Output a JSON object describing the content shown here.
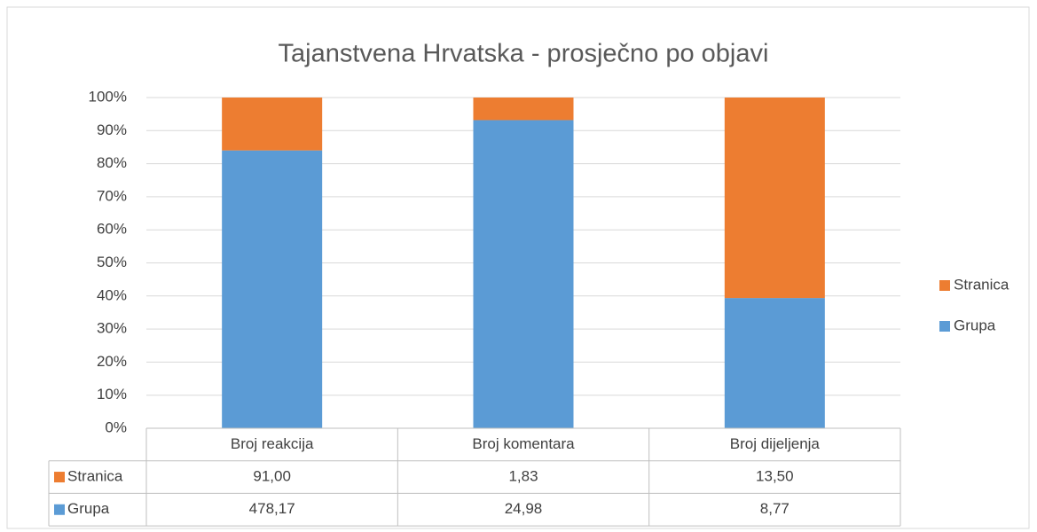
{
  "chart_data": {
    "type": "bar",
    "stacked": "percent",
    "title": "Tajanstvena Hrvatska - prosječno po objavi",
    "categories": [
      "Broj reakcija",
      "Broj komentara",
      "Broj dijeljenja"
    ],
    "series": [
      {
        "name": "Grupa",
        "color": "#5b9bd5",
        "values": [
          478.17,
          24.98,
          8.77
        ],
        "value_labels": [
          "478,17",
          "24,98",
          "8,77"
        ]
      },
      {
        "name": "Stranica",
        "color": "#ed7d31",
        "values": [
          91.0,
          1.83,
          13.5
        ],
        "value_labels": [
          "91,00",
          "1,83",
          "13,50"
        ]
      }
    ],
    "ylim": [
      0,
      100
    ],
    "yticks": [
      {
        "value": 0,
        "label": "0%"
      },
      {
        "value": 10,
        "label": "10%"
      },
      {
        "value": 20,
        "label": "20%"
      },
      {
        "value": 30,
        "label": "30%"
      },
      {
        "value": 40,
        "label": "40%"
      },
      {
        "value": 50,
        "label": "50%"
      },
      {
        "value": 60,
        "label": "60%"
      },
      {
        "value": 70,
        "label": "70%"
      },
      {
        "value": 80,
        "label": "80%"
      },
      {
        "value": 90,
        "label": "90%"
      },
      {
        "value": 100,
        "label": "100%"
      }
    ],
    "grid": true,
    "legend": "right",
    "data_table": true
  }
}
